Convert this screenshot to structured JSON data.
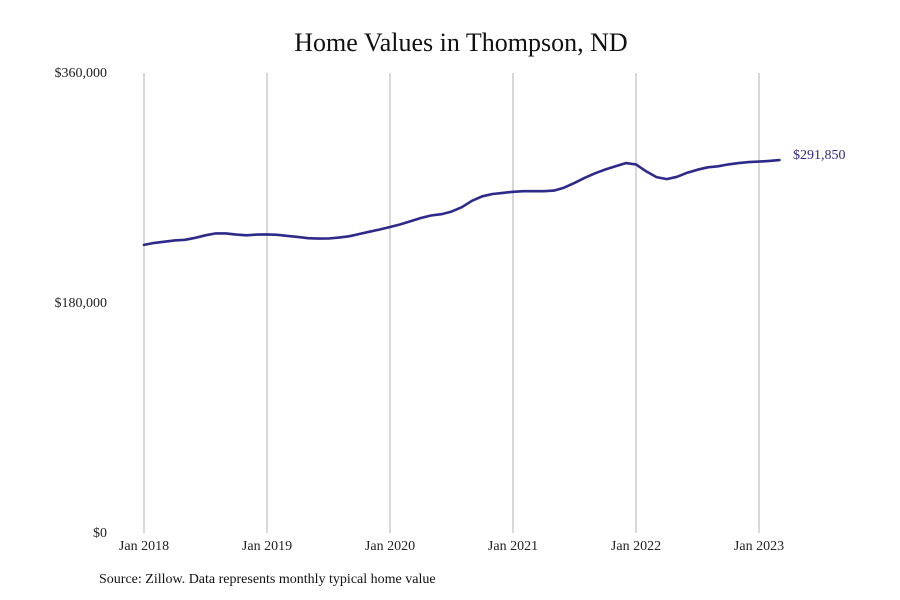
{
  "chart_data": {
    "type": "line",
    "title": "Home Values in Thompson, ND",
    "xlabel": "",
    "ylabel": "",
    "ylim": [
      0,
      360000
    ],
    "y_ticks": [
      {
        "value": 0,
        "label": "$0"
      },
      {
        "value": 180000,
        "label": "$180,000"
      },
      {
        "value": 360000,
        "label": "$360,000"
      }
    ],
    "x_ticks": [
      {
        "value": "2018-01",
        "label": "Jan 2018"
      },
      {
        "value": "2019-01",
        "label": "Jan 2019"
      },
      {
        "value": "2020-01",
        "label": "Jan 2020"
      },
      {
        "value": "2021-01",
        "label": "Jan 2021"
      },
      {
        "value": "2022-01",
        "label": "Jan 2022"
      },
      {
        "value": "2023-01",
        "label": "Jan 2023"
      }
    ],
    "x_range": [
      "2018-01",
      "2023-03"
    ],
    "grid": "vertical lines at x ticks",
    "line_color": "#2e2a8a",
    "grid_color": "#b0b0b0",
    "end_value_label": "$291,850",
    "series": [
      {
        "x": [
          "2018-01",
          "2018-02",
          "2018-03",
          "2018-04",
          "2018-05",
          "2018-06",
          "2018-07",
          "2018-08",
          "2018-09",
          "2018-10",
          "2018-11",
          "2018-12",
          "2019-01",
          "2019-02",
          "2019-03",
          "2019-04",
          "2019-05",
          "2019-06",
          "2019-07",
          "2019-08",
          "2019-09",
          "2019-10",
          "2019-11",
          "2019-12",
          "2020-01",
          "2020-02",
          "2020-03",
          "2020-04",
          "2020-05",
          "2020-06",
          "2020-07",
          "2020-08",
          "2020-09",
          "2020-10",
          "2020-11",
          "2020-12",
          "2021-01",
          "2021-02",
          "2021-03",
          "2021-04",
          "2021-05",
          "2021-06",
          "2021-07",
          "2021-08",
          "2021-09",
          "2021-10",
          "2021-11",
          "2021-12",
          "2022-01",
          "2022-02",
          "2022-03",
          "2022-04",
          "2022-05",
          "2022-06",
          "2022-07",
          "2022-08",
          "2022-09",
          "2022-10",
          "2022-11",
          "2022-12",
          "2023-01",
          "2023-02",
          "2023-03"
        ],
        "y": [
          225500,
          227000,
          228000,
          229000,
          229500,
          231000,
          233000,
          234500,
          234500,
          233500,
          233000,
          233500,
          233700,
          233400,
          232500,
          231700,
          230700,
          230400,
          230500,
          231200,
          232200,
          234000,
          235800,
          237500,
          239500,
          241500,
          244000,
          246500,
          248500,
          249500,
          251500,
          255000,
          260000,
          263500,
          265300,
          266200,
          267000,
          267500,
          267500,
          267500,
          268000,
          270300,
          274000,
          278000,
          281500,
          284500,
          287000,
          289500,
          288500,
          283000,
          278500,
          277000,
          278800,
          282000,
          284300,
          286200,
          287000,
          288500,
          289500,
          290300,
          290700,
          291200,
          291850
        ]
      }
    ]
  },
  "source_note": "Source: Zillow. Data represents monthly typical home value"
}
